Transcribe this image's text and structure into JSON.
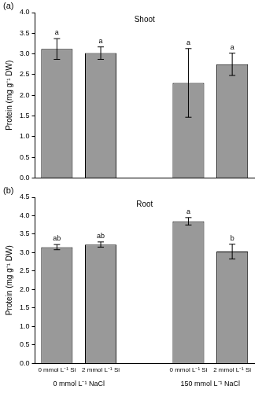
{
  "chart_data": [
    {
      "type": "bar",
      "panel": "(a)",
      "title": "Shoot",
      "y_label": "Protein (mg g⁻¹ DW)",
      "categories": [
        null,
        null,
        null,
        null,
        null
      ],
      "values": [
        3.12,
        3.02,
        null,
        2.3,
        2.75
      ],
      "errors": [
        0.25,
        0.15,
        null,
        0.83,
        0.27
      ],
      "letters": [
        "a",
        "a",
        null,
        "a",
        "a"
      ],
      "color": "#999999",
      "ylim": [
        0,
        4
      ],
      "yticks": [
        {
          "value": 0,
          "label": "0.0"
        },
        {
          "value": 0.5,
          "label": "0.5"
        },
        {
          "value": 1,
          "label": "1.0"
        },
        {
          "value": 1.5,
          "label": "1.5"
        },
        {
          "value": 2,
          "label": "2.0"
        },
        {
          "value": 2.5,
          "label": "2.5"
        },
        {
          "value": 3,
          "label": "3.0"
        },
        {
          "value": 3.5,
          "label": "3.5"
        },
        {
          "value": 4,
          "label": "4.0"
        }
      ],
      "grid": false,
      "tick_labels": "y"
    },
    {
      "type": "bar",
      "panel": "(b)",
      "title": "Root",
      "y_label": "Protein (mg g⁻¹ DW)",
      "categories": [
        "0 mmol L⁻¹ Si",
        "2 mmol L⁻¹ Si",
        null,
        "0 mmol L⁻¹ Si",
        "2 mmol L⁻¹ Si"
      ],
      "group_labels": [
        "0 mmol L⁻¹ NaCl",
        "150 mmol L⁻¹ NaCl"
      ],
      "values": [
        3.15,
        3.22,
        null,
        3.85,
        3.03
      ],
      "errors": [
        0.07,
        0.07,
        null,
        0.1,
        0.2
      ],
      "letters": [
        "ab",
        "ab",
        null,
        "a",
        "b"
      ],
      "color": "#999999",
      "ylim": [
        0,
        4.5
      ],
      "yticks": [
        {
          "value": 0,
          "label": "0.0"
        },
        {
          "value": 0.5,
          "label": "0.5"
        },
        {
          "value": 1,
          "label": "1.0"
        },
        {
          "value": 1.5,
          "label": "1.5"
        },
        {
          "value": 2,
          "label": "2.0"
        },
        {
          "value": 2.5,
          "label": "2.5"
        },
        {
          "value": 3,
          "label": "3.0"
        },
        {
          "value": 3.5,
          "label": "3.5"
        },
        {
          "value": 4,
          "label": "4.0"
        },
        {
          "value": 4.5,
          "label": "4.5"
        }
      ],
      "grid": false
    }
  ]
}
